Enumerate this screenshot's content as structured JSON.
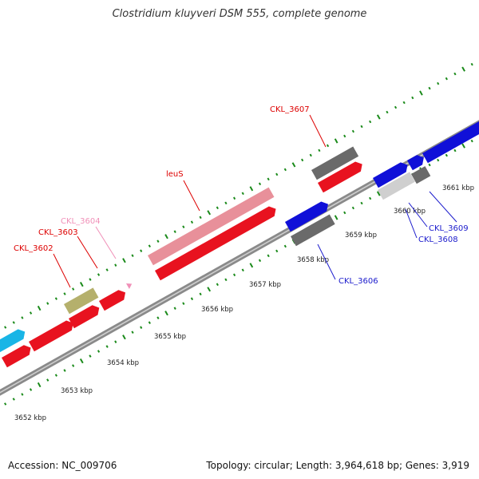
{
  "title": "Clostridium kluyveri DSM 555, complete genome",
  "footer": {
    "accession": "Accession: NC_009706",
    "summary": "Topology: circular; Length: 3,964,618 bp; Genes: 3,919"
  },
  "colors": {
    "backbone": "#8a8a8a",
    "tick": "#1a8a1a",
    "red_gene": "#e8121f",
    "pink_gene": "#e8909a",
    "blue_gene": "#1010d8",
    "olive_gene": "#b5b06c",
    "cyan_gene": "#19b5e6",
    "gray_gene": "#6a6a6a",
    "lightgray_gene": "#cfcfcf",
    "label_red": "#dd0000",
    "label_pink": "#f090b8",
    "label_blue": "#1a1acc"
  },
  "kbp_labels": [
    "3652 kbp",
    "3653 kbp",
    "3654 kbp",
    "3655 kbp",
    "3656 kbp",
    "3657 kbp",
    "3658 kbp",
    "3659 kbp",
    "3660 kbp",
    "3661 kbp"
  ],
  "gene_labels": [
    {
      "text": "CKL_3602",
      "color": "label_red"
    },
    {
      "text": "CKL_3603",
      "color": "label_red"
    },
    {
      "text": "CKL_3604",
      "color": "label_pink"
    },
    {
      "text": "leuS",
      "color": "label_red"
    },
    {
      "text": "CKL_3607",
      "color": "label_red"
    },
    {
      "text": "CKL_3606",
      "color": "label_blue"
    },
    {
      "text": "CKL_3609",
      "color": "label_blue"
    },
    {
      "text": "CKL_3608",
      "color": "label_blue"
    }
  ]
}
